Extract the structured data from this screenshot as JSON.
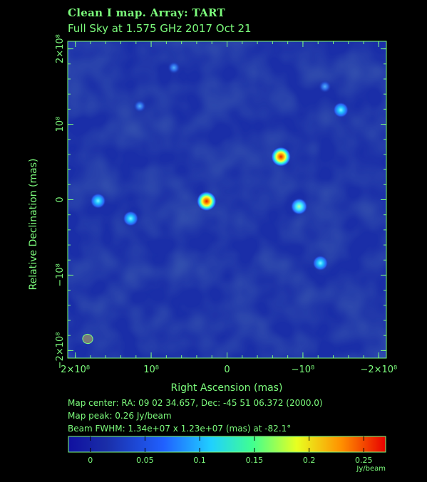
{
  "header": {
    "title_line1": "Clean I map.  Array:  TART",
    "title_line2": "Full Sky at 1.575 GHz 2017 Oct 21"
  },
  "info": {
    "map_center": "Map center:  RA: 09 02 34.657,  Dec: -45 51 06.372 (2000.0)",
    "map_peak": "Map peak: 0.26 Jy/beam",
    "beam_fwhm": "Beam FWHM: 1.34e+07 x 1.23e+07 (mas) at -82.1°"
  },
  "colors": {
    "background": "#000000",
    "axis": "#7CFC7C",
    "map_background": "#1a2ea8"
  },
  "chart_data": {
    "type": "heatmap",
    "xlabel": "Right Ascension  (mas)",
    "ylabel": "Relative Declination  (mas)",
    "xlim": [
      210000000.0,
      -210000000.0
    ],
    "ylim": [
      -210000000.0,
      210000000.0
    ],
    "x_ticks": [
      {
        "value": 200000000.0,
        "label": "2×10⁸"
      },
      {
        "value": 100000000.0,
        "label": "10⁸"
      },
      {
        "value": 0,
        "label": "0"
      },
      {
        "value": -100000000.0,
        "label": "−10⁸"
      },
      {
        "value": -200000000.0,
        "label": "−2×10⁸"
      }
    ],
    "y_ticks": [
      {
        "value": 200000000.0,
        "label": "2×10⁸"
      },
      {
        "value": 100000000.0,
        "label": "10⁸"
      },
      {
        "value": 0,
        "label": "0"
      },
      {
        "value": -100000000.0,
        "label": "−10⁸"
      },
      {
        "value": -200000000.0,
        "label": "−2×10⁸"
      }
    ],
    "sources": [
      {
        "ra": 27000000.0,
        "dec": -2000000.0,
        "flux": 0.26
      },
      {
        "ra": -71000000.0,
        "dec": 57000000.0,
        "flux": 0.25
      },
      {
        "ra": -95000000.0,
        "dec": -9000000.0,
        "flux": 0.13
      },
      {
        "ra": 170000000.0,
        "dec": -1500000.0,
        "flux": 0.09
      },
      {
        "ra": 127000000.0,
        "dec": -25000000.0,
        "flux": 0.08
      },
      {
        "ra": -123000000.0,
        "dec": -84000000.0,
        "flux": 0.08
      },
      {
        "ra": -150000000.0,
        "dec": 119000000.0,
        "flux": 0.08
      },
      {
        "ra": -129000000.0,
        "dec": 150000000.0,
        "flux": 0.04
      },
      {
        "ra": 115000000.0,
        "dec": 124000000.0,
        "flux": 0.04
      },
      {
        "ra": 70000000.0,
        "dec": 175000000.0,
        "flux": 0.03
      }
    ],
    "beam": {
      "major_mas": 13400000.0,
      "minor_mas": 12300000.0,
      "pa_deg": -82.1
    },
    "colorbar": {
      "range": [
        -0.02,
        0.27
      ],
      "ticks": [
        {
          "value": 0,
          "label": "0"
        },
        {
          "value": 0.05,
          "label": "0.05"
        },
        {
          "value": 0.1,
          "label": "0.1"
        },
        {
          "value": 0.15,
          "label": "0.15"
        },
        {
          "value": 0.2,
          "label": "0.2"
        },
        {
          "value": 0.25,
          "label": "0.25"
        }
      ],
      "unit": "Jy/beam"
    }
  }
}
